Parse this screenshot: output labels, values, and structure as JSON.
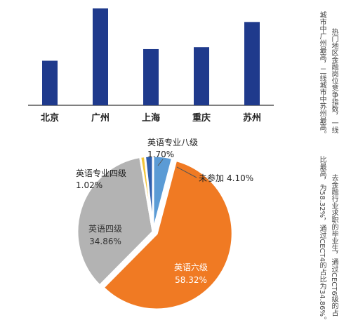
{
  "chart_data": [
    {
      "type": "bar",
      "categories": [
        "北京",
        "广州",
        "上海",
        "重庆",
        "苏州"
      ],
      "values": [
        46,
        100,
        58,
        60,
        86
      ],
      "title": "",
      "xlabel": "",
      "ylabel": "",
      "ylim": [
        0,
        100
      ],
      "colors": {
        "bar": "#1f3a8c",
        "axis": "#555555"
      }
    },
    {
      "type": "pie",
      "slices": [
        {
          "label": "英语六级",
          "value": 58.32,
          "value_text": "58.32%",
          "color": "#f07a23"
        },
        {
          "label": "英语四级",
          "value": 34.86,
          "value_text": "34.86%",
          "color": "#b3b3b3"
        },
        {
          "label": "英语专业四级",
          "value": 1.02,
          "value_text": "1.02%",
          "color": "#f2c53a"
        },
        {
          "label": "英语专业八级",
          "value": 1.7,
          "value_text": "1.70%",
          "color": "#2f5fae"
        },
        {
          "label": "未参加",
          "value": 4.1,
          "value_text": "4.10%",
          "color": "#5b9bd5"
        }
      ]
    }
  ],
  "annotations": {
    "note1": [
      "热门地区金融岗位竞争指数，一线",
      "城市中广州最高，二线城市中苏州最高。"
    ],
    "note2": [
      "去金融行业求职的毕业生，通过CECT6级的占",
      "比最高，为58.32%，通过CECT4的占比为34.86%。"
    ]
  }
}
